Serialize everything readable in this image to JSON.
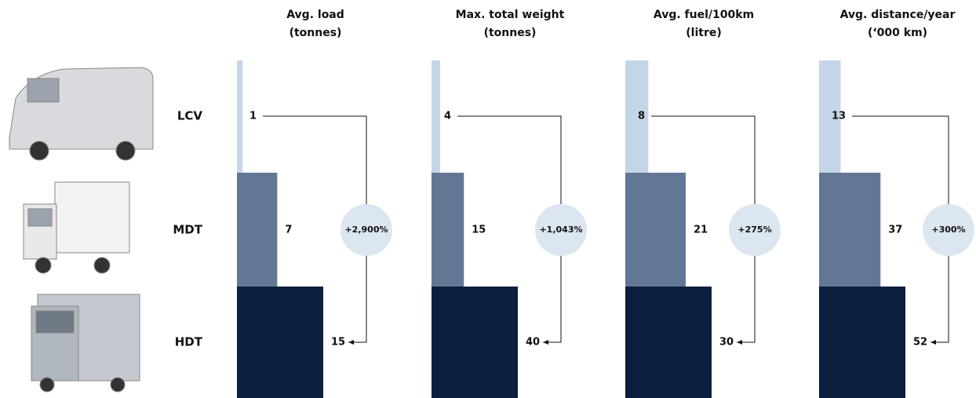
{
  "chart_data": {
    "type": "bar",
    "categories": [
      "LCV",
      "MDT",
      "HDT"
    ],
    "colors": [
      "#c5d5e8",
      "#627793",
      "#0c1f3f"
    ],
    "series": [
      {
        "name": "Avg. load\n(tonnes)",
        "values": [
          1,
          7,
          15
        ],
        "annotation": "+2,900%"
      },
      {
        "name": "Max. total weight\n(tonnes)",
        "values": [
          4,
          15,
          40
        ],
        "annotation": "+1,043%"
      },
      {
        "name": "Avg. fuel/100km\n(litre)",
        "values": [
          8,
          21,
          30
        ],
        "annotation": "+275%"
      },
      {
        "name": "Avg. distance/year\n(‘000 km)",
        "values": [
          13,
          37,
          52
        ],
        "annotation": "+300%"
      }
    ]
  }
}
